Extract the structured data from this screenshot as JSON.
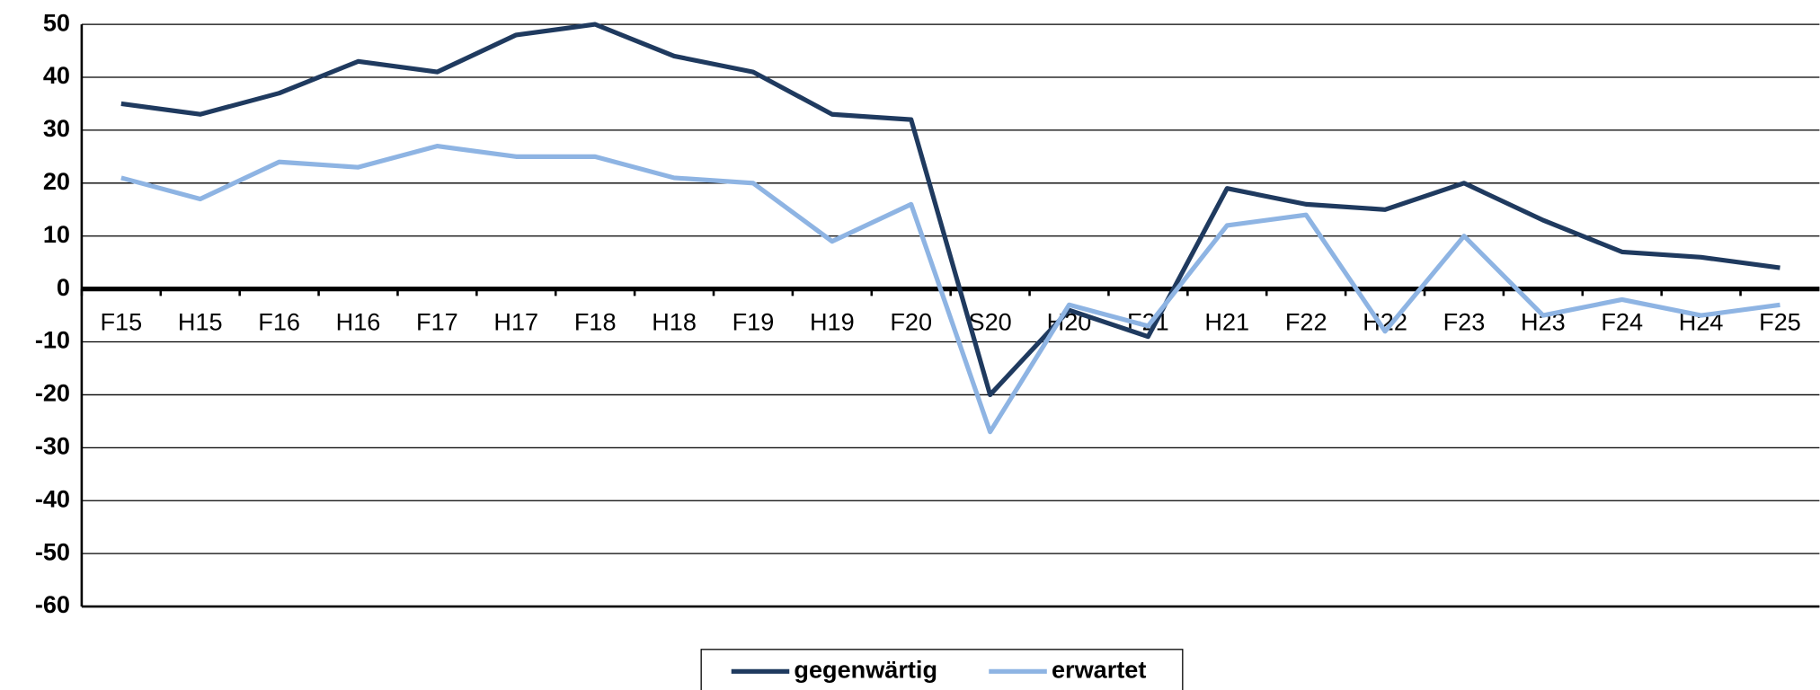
{
  "chart_data": {
    "type": "line",
    "categories": [
      "F15",
      "H15",
      "F16",
      "H16",
      "F17",
      "H17",
      "F18",
      "H18",
      "F19",
      "H19",
      "F20",
      "S20",
      "H20",
      "F21",
      "H21",
      "F22",
      "H22",
      "F23",
      "H23",
      "F24",
      "H24",
      "F25"
    ],
    "series": [
      {
        "name": "gegenwärtig",
        "color": "#1f3a5f",
        "values": [
          35,
          33,
          37,
          43,
          41,
          48,
          50,
          44,
          41,
          33,
          32,
          -20,
          -4,
          -9,
          19,
          16,
          15,
          20,
          13,
          7,
          6,
          4
        ]
      },
      {
        "name": "erwartet",
        "color": "#8eb4e3",
        "values": [
          21,
          17,
          24,
          23,
          27,
          25,
          25,
          21,
          20,
          9,
          16,
          -27,
          -3,
          -7,
          12,
          14,
          -8,
          10,
          -5,
          -2,
          -5,
          -3
        ]
      }
    ],
    "ylim": [
      -60,
      50
    ],
    "yticks": [
      -60,
      -50,
      -40,
      -30,
      -20,
      -10,
      0,
      10,
      20,
      30,
      40,
      50
    ],
    "grid": true,
    "legend": "bottom"
  }
}
